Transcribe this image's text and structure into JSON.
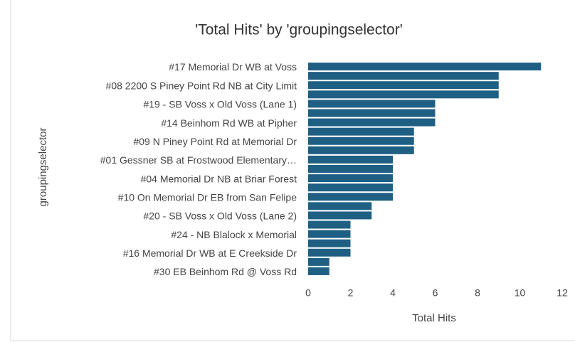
{
  "chart_data": {
    "type": "bar",
    "orientation": "horizontal",
    "title": "'Total Hits' by 'groupingselector'",
    "x_label": "Total Hits",
    "y_label": "groupingselector",
    "categories": [
      "#17 Memorial Dr WB at Voss",
      null,
      "#08 2200 S Piney Point Rd NB at City Limit",
      null,
      "#19 - SB Voss x Old Voss (Lane 1)",
      null,
      "#14 Beinhom Rd WB at Pipher",
      null,
      "#09 N Piney Point Rd at Memorial Dr",
      null,
      "#01 Gessner SB at Frostwood Elementary…",
      null,
      "#04 Memorial Dr NB at Briar Forest",
      null,
      "#10 On Memorial Dr EB from San Felipe",
      null,
      "#20 - SB Voss x Old Voss (Lane 2)",
      null,
      "#24 - NB Blalock x Memorial",
      null,
      "#16 Memorial Dr WB at E Creekside Dr",
      null,
      "#30 EB Beinhom Rd @ Voss Rd"
    ],
    "values": [
      11,
      9,
      9,
      9,
      6,
      6,
      6,
      5,
      5,
      5,
      4,
      4,
      4,
      4,
      4,
      3,
      3,
      2,
      2,
      2,
      2,
      1,
      1
    ],
    "color": "#1f5f84",
    "xlim": [
      0,
      12
    ],
    "xticks": [
      0,
      2,
      4,
      6,
      8,
      10,
      12
    ],
    "grid": false
  }
}
